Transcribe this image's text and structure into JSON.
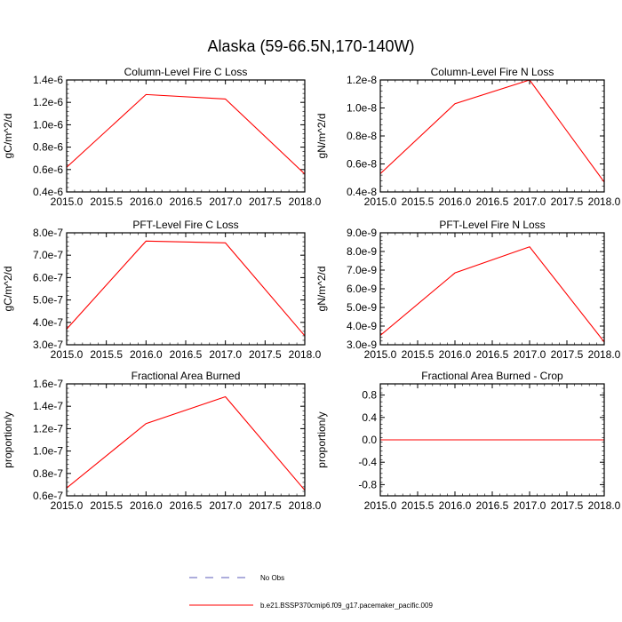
{
  "title": "Alaska (59-66.5N,170-140W)",
  "legend": {
    "entries": [
      {
        "label": "No Obs",
        "color": "#5b5bb8",
        "style": "dashed"
      },
      {
        "label": "b.e21.BSSP370cmip6.f09_g17.pacemaker_pacific.009",
        "color": "#ff0000",
        "style": "solid"
      }
    ]
  },
  "chart_data": [
    {
      "type": "line",
      "title": "Column-Level Fire C Loss",
      "ylabel": "gC/m^2/d",
      "xlim": [
        2015.0,
        2018.0
      ],
      "ylim": [
        4e-07,
        1.4e-06
      ],
      "xticks": [
        2015.0,
        2015.5,
        2016.0,
        2016.5,
        2017.0,
        2017.5,
        2018.0
      ],
      "xtick_labels": [
        "2015.0",
        "2015.5",
        "2016.0",
        "2016.5",
        "2017.0",
        "2017.5",
        "2018.0"
      ],
      "yticks": [
        4e-07,
        6e-07,
        8e-07,
        1e-06,
        1.2e-06,
        1.4e-06
      ],
      "ytick_labels": [
        "0.4e-6",
        "0.6e-6",
        "0.8e-6",
        "1.0e-6",
        "1.2e-6",
        "1.4e-6"
      ],
      "series": [
        {
          "x": [
            2015,
            2016,
            2017,
            2018
          ],
          "y": [
            6.2e-07,
            1.27e-06,
            1.23e-06,
            5.6e-07
          ],
          "color": "#ff0000"
        }
      ]
    },
    {
      "type": "line",
      "title": "Column-Level Fire N Loss",
      "ylabel": "gN/m^2/d",
      "xlim": [
        2015.0,
        2018.0
      ],
      "ylim": [
        4e-09,
        1.2e-08
      ],
      "xticks": [
        2015.0,
        2015.5,
        2016.0,
        2016.5,
        2017.0,
        2017.5,
        2018.0
      ],
      "xtick_labels": [
        "2015.0",
        "2015.5",
        "2016.0",
        "2016.5",
        "2017.0",
        "2017.5",
        "2018.0"
      ],
      "yticks": [
        4e-09,
        6e-09,
        8e-09,
        1e-08,
        1.2e-08
      ],
      "ytick_labels": [
        "0.4e-8",
        "0.6e-8",
        "0.8e-8",
        "1.0e-8",
        "1.2e-8"
      ],
      "series": [
        {
          "x": [
            2015,
            2016,
            2017,
            2018
          ],
          "y": [
            5.3e-09,
            1.03e-08,
            1.2e-08,
            4.7e-09
          ],
          "color": "#ff0000"
        }
      ]
    },
    {
      "type": "line",
      "title": "PFT-Level Fire C Loss",
      "ylabel": "gC/m^2/d",
      "xlim": [
        2015.0,
        2018.0
      ],
      "ylim": [
        3e-07,
        8e-07
      ],
      "xticks": [
        2015.0,
        2015.5,
        2016.0,
        2016.5,
        2017.0,
        2017.5,
        2018.0
      ],
      "xtick_labels": [
        "2015.0",
        "2015.5",
        "2016.0",
        "2016.5",
        "2017.0",
        "2017.5",
        "2018.0"
      ],
      "yticks": [
        3e-07,
        4e-07,
        5e-07,
        6e-07,
        7e-07,
        8e-07
      ],
      "ytick_labels": [
        "3.0e-7",
        "4.0e-7",
        "5.0e-7",
        "6.0e-7",
        "7.0e-7",
        "8.0e-7"
      ],
      "series": [
        {
          "x": [
            2015,
            2016,
            2017,
            2018
          ],
          "y": [
            3.7e-07,
            7.63e-07,
            7.55e-07,
            3.4e-07
          ],
          "color": "#ff0000"
        }
      ]
    },
    {
      "type": "line",
      "title": "PFT-Level Fire N Loss",
      "ylabel": "gN/m^2/d",
      "xlim": [
        2015.0,
        2018.0
      ],
      "ylim": [
        3e-09,
        9e-09
      ],
      "xticks": [
        2015.0,
        2015.5,
        2016.0,
        2016.5,
        2017.0,
        2017.5,
        2018.0
      ],
      "xtick_labels": [
        "2015.0",
        "2015.5",
        "2016.0",
        "2016.5",
        "2017.0",
        "2017.5",
        "2018.0"
      ],
      "yticks": [
        3e-09,
        4e-09,
        5e-09,
        6e-09,
        7e-09,
        8e-09,
        9e-09
      ],
      "ytick_labels": [
        "3.0e-9",
        "4.0e-9",
        "5.0e-9",
        "6.0e-9",
        "7.0e-9",
        "8.0e-9",
        "9.0e-9"
      ],
      "series": [
        {
          "x": [
            2015,
            2016,
            2017,
            2018
          ],
          "y": [
            3.5e-09,
            6.85e-09,
            8.25e-09,
            3.15e-09
          ],
          "color": "#ff0000"
        }
      ]
    },
    {
      "type": "line",
      "title": "Fractional Area Burned",
      "ylabel": "proportion/y",
      "xlim": [
        2015.0,
        2018.0
      ],
      "ylim": [
        6e-08,
        1.6e-07
      ],
      "xticks": [
        2015.0,
        2015.5,
        2016.0,
        2016.5,
        2017.0,
        2017.5,
        2018.0
      ],
      "xtick_labels": [
        "2015.0",
        "2015.5",
        "2016.0",
        "2016.5",
        "2017.0",
        "2017.5",
        "2018.0"
      ],
      "yticks": [
        6e-08,
        8e-08,
        1e-07,
        1.2e-07,
        1.4e-07,
        1.6e-07
      ],
      "ytick_labels": [
        "0.6e-7",
        "0.8e-7",
        "1.0e-7",
        "1.2e-7",
        "1.4e-7",
        "1.6e-7"
      ],
      "series": [
        {
          "x": [
            2015,
            2016,
            2017,
            2018
          ],
          "y": [
            6.7e-08,
            1.245e-07,
            1.485e-07,
            6.5e-08
          ],
          "color": "#ff0000"
        }
      ]
    },
    {
      "type": "line",
      "title": "Fractional Area Burned - Crop",
      "ylabel": "proportion/y",
      "xlim": [
        2015.0,
        2018.0
      ],
      "ylim": [
        -1.0,
        1.0
      ],
      "xticks": [
        2015.0,
        2015.5,
        2016.0,
        2016.5,
        2017.0,
        2017.5,
        2018.0
      ],
      "xtick_labels": [
        "2015.0",
        "2015.5",
        "2016.0",
        "2016.5",
        "2017.0",
        "2017.5",
        "2018.0"
      ],
      "yticks": [
        -0.8,
        -0.4,
        0.0,
        0.4,
        0.8
      ],
      "ytick_labels": [
        "-0.8",
        "-0.4",
        "0.0",
        "0.4",
        "0.8"
      ],
      "series": [
        {
          "x": [
            2015,
            2016,
            2017,
            2018
          ],
          "y": [
            0.0,
            0.0,
            0.0,
            0.0
          ],
          "color": "#ff0000"
        }
      ]
    }
  ]
}
